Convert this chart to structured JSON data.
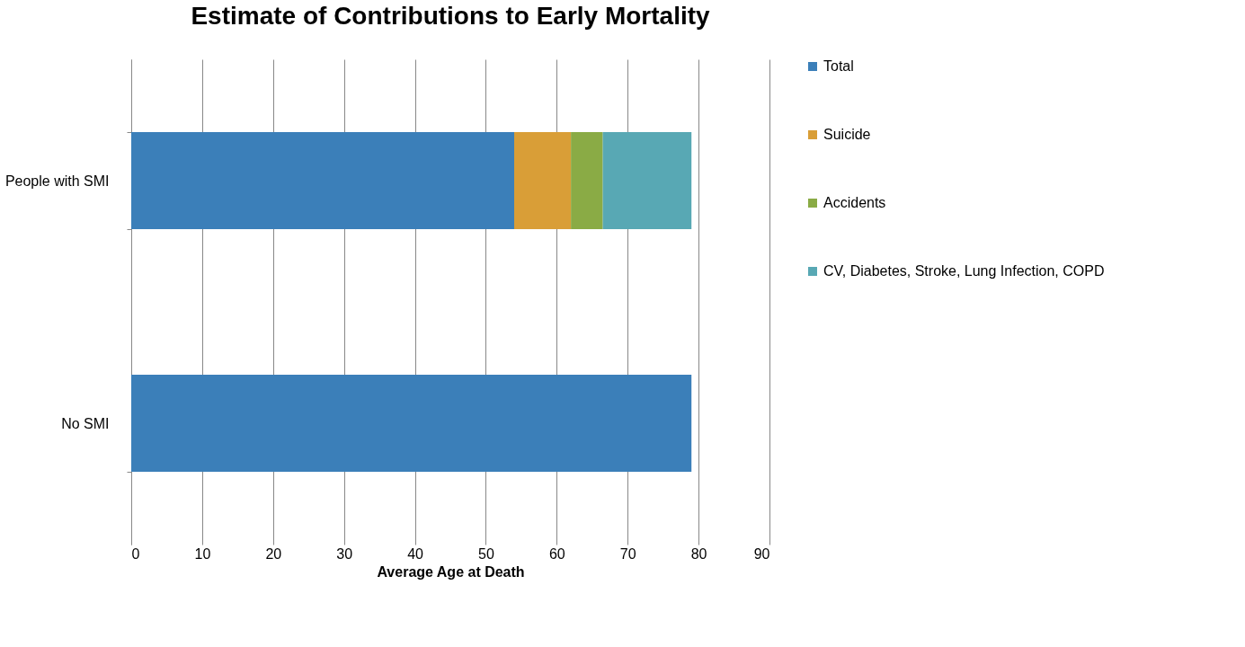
{
  "chart_data": {
    "type": "bar",
    "orientation": "horizontal",
    "stacked": true,
    "title": "Estimate of Contributions to Early Mortality",
    "xlabel": "Average Age at Death",
    "categories": [
      "People with SMI",
      "No SMI"
    ],
    "series": [
      {
        "name": "Total",
        "color": "#3b7fb9",
        "values": [
          54,
          79
        ]
      },
      {
        "name": "Suicide",
        "color": "#d99e37",
        "values": [
          8,
          null
        ]
      },
      {
        "name": "Accidents",
        "color": "#8aab45",
        "values": [
          4.5,
          null
        ]
      },
      {
        "name": "CV, Diabetes, Stroke, Lung Infection, COPD",
        "color": "#58a8b4",
        "values": [
          12.5,
          null
        ]
      }
    ],
    "xlim": [
      0,
      90
    ],
    "xticks": [
      0,
      10,
      20,
      30,
      40,
      50,
      60,
      70,
      80,
      90
    ],
    "grid": "x",
    "legend": "right"
  }
}
